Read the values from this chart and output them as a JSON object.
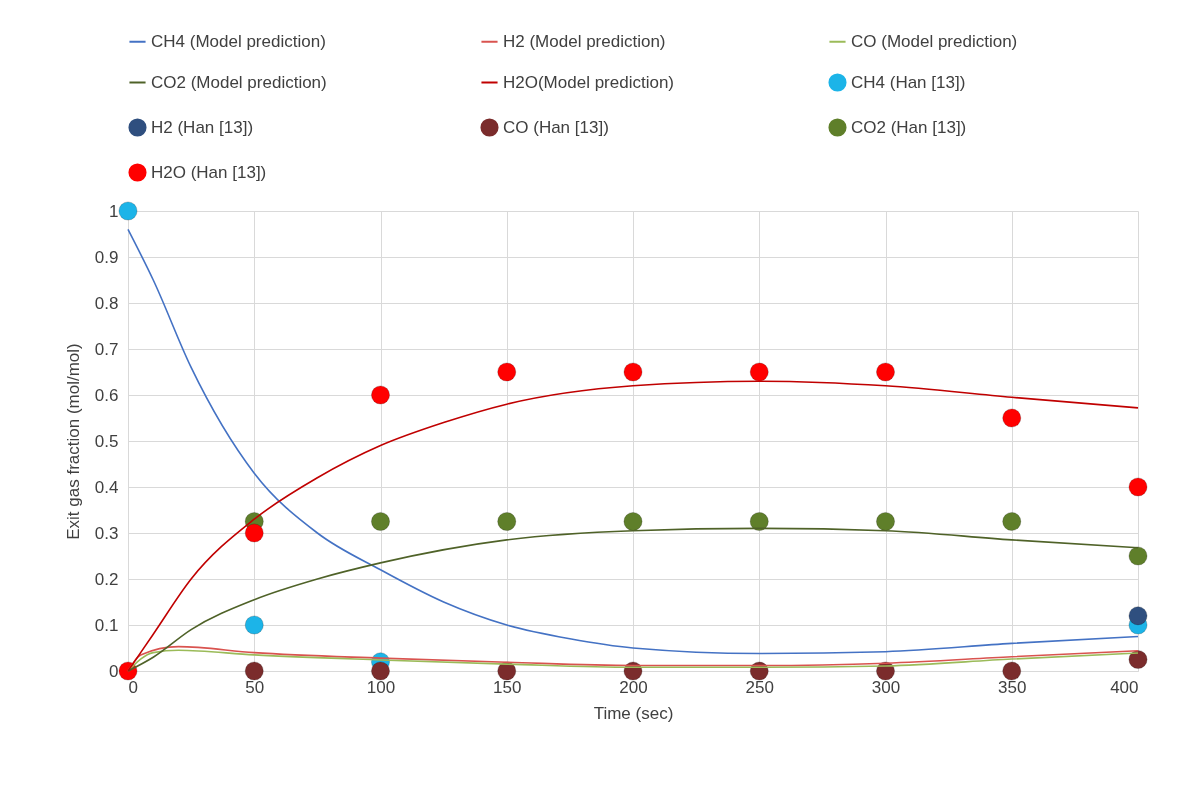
{
  "chart_data": {
    "type": "line",
    "xlabel": "Time (sec)",
    "ylabel": "Exit gas fraction (mol/mol)",
    "xlim": [
      0,
      400
    ],
    "xticks": [
      0,
      50,
      100,
      150,
      200,
      250,
      300,
      350,
      400
    ],
    "ylim": [
      0,
      1
    ],
    "yticks": [
      0,
      0.1,
      0.2,
      0.3,
      0.4,
      0.5,
      0.6,
      0.7,
      0.8,
      0.9,
      1
    ],
    "grid": true,
    "legend": "top",
    "line_style": "solid",
    "series": [
      {
        "name": "CH4 (Model prediction)",
        "color": "#4472c4",
        "x": [
          0,
          10,
          25,
          50,
          75,
          100,
          125,
          150,
          175,
          200,
          250,
          300,
          350,
          400
        ],
        "values": [
          0.96,
          0.85,
          0.66,
          0.43,
          0.3,
          0.22,
          0.15,
          0.1,
          0.07,
          0.05,
          0.038,
          0.042,
          0.06,
          0.075
        ]
      },
      {
        "name": "H2 (Model prediction)",
        "color": "#d9534f",
        "x": [
          0,
          5,
          20,
          50,
          100,
          150,
          200,
          250,
          300,
          350,
          400
        ],
        "values": [
          0,
          0.035,
          0.053,
          0.04,
          0.028,
          0.019,
          0.012,
          0.012,
          0.017,
          0.031,
          0.044
        ]
      },
      {
        "name": "CO (Model prediction)",
        "color": "#9bbb59",
        "x": [
          0,
          10,
          20,
          50,
          100,
          150,
          200,
          250,
          300,
          350,
          400
        ],
        "values": [
          0,
          0.04,
          0.045,
          0.035,
          0.024,
          0.015,
          0.008,
          0.008,
          0.011,
          0.026,
          0.039
        ]
      },
      {
        "name": "CO2 (Model prediction)",
        "color": "#4f6228",
        "x": [
          0,
          10,
          25,
          50,
          75,
          100,
          150,
          200,
          250,
          300,
          350,
          400
        ],
        "values": [
          0,
          0.03,
          0.09,
          0.155,
          0.2,
          0.235,
          0.285,
          0.305,
          0.31,
          0.305,
          0.285,
          0.268
        ]
      },
      {
        "name": "H2O(Model prediction)",
        "color": "#c00000",
        "x": [
          0,
          10,
          25,
          50,
          75,
          100,
          125,
          150,
          200,
          250,
          300,
          350,
          400
        ],
        "values": [
          0,
          0.08,
          0.2,
          0.33,
          0.42,
          0.49,
          0.54,
          0.58,
          0.62,
          0.63,
          0.62,
          0.595,
          0.572
        ]
      },
      {
        "name": "CH4 (Han [13])",
        "type": "scatter",
        "color": "#1cb4e8",
        "x": [
          0,
          50,
          100,
          400
        ],
        "values": [
          1,
          0.1,
          0.02,
          0.1
        ]
      },
      {
        "name": "H2 (Han [13])",
        "type": "scatter",
        "color": "#2f4f7f",
        "x": [
          400
        ],
        "values": [
          0.12
        ]
      },
      {
        "name": "CO (Han [13])",
        "type": "scatter",
        "color": "#7b2c2c",
        "x": [
          50,
          100,
          150,
          200,
          250,
          300,
          350,
          400
        ],
        "values": [
          0,
          0,
          0,
          0,
          0,
          0,
          0,
          0.025
        ]
      },
      {
        "name": "CO2 (Han [13])",
        "type": "scatter",
        "color": "#5f7f2a",
        "x": [
          50,
          100,
          150,
          200,
          250,
          300,
          350,
          400
        ],
        "values": [
          0.325,
          0.325,
          0.325,
          0.325,
          0.325,
          0.325,
          0.325,
          0.25
        ]
      },
      {
        "name": "H2O (Han [13])",
        "type": "scatter",
        "color": "#ff0000",
        "x": [
          0,
          50,
          100,
          150,
          200,
          250,
          300,
          350,
          400
        ],
        "values": [
          0,
          0.3,
          0.6,
          0.65,
          0.65,
          0.65,
          0.65,
          0.55,
          0.4
        ]
      }
    ]
  }
}
